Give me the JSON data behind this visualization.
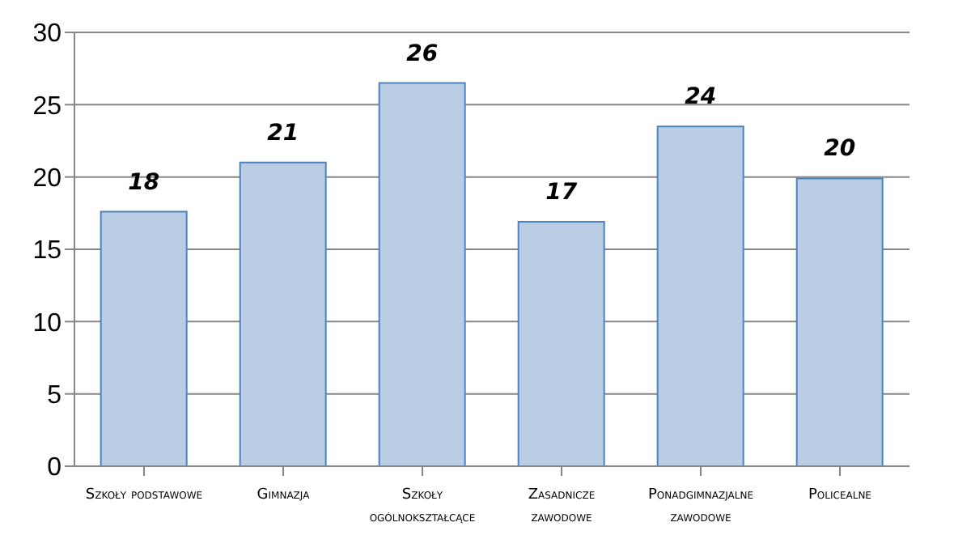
{
  "chart_data": {
    "type": "bar",
    "categories": [
      "Szkoły podstawowe",
      "Gimnazja",
      "Szkoły ogólnokształcące",
      "Zasadnicze zawodowe",
      "Ponadgimnazjalne zawodowe",
      "Policealne"
    ],
    "values": [
      17.6,
      21,
      26.5,
      16.9,
      23.5,
      19.9
    ],
    "value_labels": [
      "18",
      "21",
      "26",
      "17",
      "24",
      "20"
    ],
    "color": "#b9cde5",
    "ylim": [
      0,
      30
    ],
    "yticks": [
      0,
      5,
      10,
      15,
      20,
      25,
      30
    ],
    "grid": "y"
  }
}
